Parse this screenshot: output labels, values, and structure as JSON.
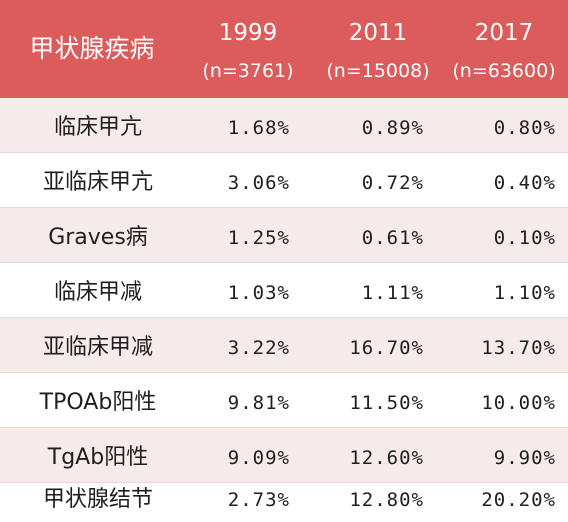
{
  "header": {
    "title": "甲状腺疾病",
    "columns": [
      {
        "year": "1999",
        "sample": "(n=3761)"
      },
      {
        "year": "2011",
        "sample": "(n=15008)"
      },
      {
        "year": "2017",
        "sample": "(n=63600)"
      }
    ]
  },
  "rows": [
    {
      "label": "临床甲亢",
      "values": [
        "1.68%",
        "0.89%",
        "0.80%"
      ]
    },
    {
      "label": "亚临床甲亢",
      "values": [
        "3.06%",
        "0.72%",
        "0.40%"
      ]
    },
    {
      "label": "Graves病",
      "values": [
        "1.25%",
        "0.61%",
        "0.10%"
      ]
    },
    {
      "label": "临床甲减",
      "values": [
        "1.03%",
        "1.11%",
        "1.10%"
      ]
    },
    {
      "label": "亚临床甲减",
      "values": [
        "3.22%",
        "16.70%",
        "13.70%"
      ]
    },
    {
      "label": "TPOAb阳性",
      "values": [
        "9.81%",
        "11.50%",
        "10.00%"
      ]
    },
    {
      "label": "TgAb阳性",
      "values": [
        "9.09%",
        "12.60%",
        "9.90%"
      ]
    },
    {
      "label": "甲状腺结节",
      "values": [
        "2.73%",
        "12.80%",
        "20.20%"
      ]
    }
  ],
  "colors": {
    "header_bg": "#dc5b5b",
    "stripe_bg": "#f6ebe8",
    "text": "#1f1f1f"
  }
}
